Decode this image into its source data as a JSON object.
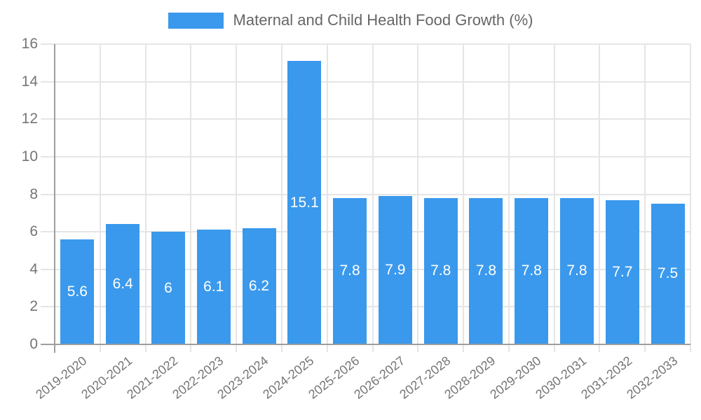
{
  "legend": {
    "label": "Maternal and Child Health Food Growth (%)"
  },
  "colors": {
    "background": "#ffffff",
    "bar": "#3a99ec",
    "grid": "#e5e5e5",
    "axis": "#9e9e9e",
    "tick_label": "#757575",
    "legend_text": "#666666",
    "value_label": "#ffffff"
  },
  "chart_data": {
    "type": "bar",
    "title": "Maternal and Child Health Food Growth (%)",
    "categories": [
      "2019-2020",
      "2020-2021",
      "2021-2022",
      "2022-2023",
      "2023-2024",
      "2024-2025",
      "2025-2026",
      "2026-2027",
      "2027-2028",
      "2028-2029",
      "2029-2030",
      "2030-2031",
      "2031-2032",
      "2032-2033"
    ],
    "values": [
      5.6,
      6.4,
      6,
      6.1,
      6.2,
      15.1,
      7.8,
      7.9,
      7.8,
      7.8,
      7.8,
      7.8,
      7.7,
      7.5
    ],
    "value_labels": [
      "5.6",
      "6.4",
      "6",
      "6.1",
      "6.2",
      "15.1",
      "7.8",
      "7.9",
      "7.8",
      "7.8",
      "7.8",
      "7.8",
      "7.7",
      "7.5"
    ],
    "xlabel": "",
    "ylabel": "",
    "ylim": [
      0,
      16
    ],
    "yticks": [
      0,
      2,
      4,
      6,
      8,
      10,
      12,
      14,
      16
    ],
    "grid": true,
    "legend_position": "top",
    "value_label_position": "inside-center",
    "x_label_rotation_deg": -38
  }
}
